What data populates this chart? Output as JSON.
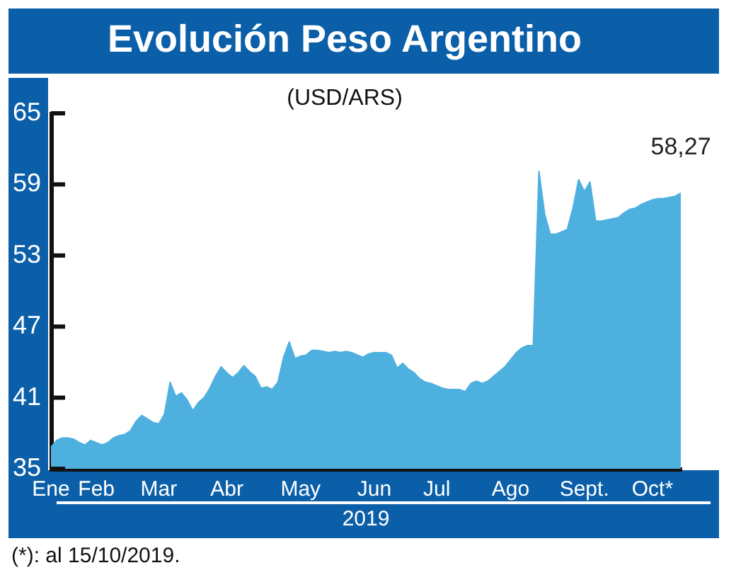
{
  "chart_data": {
    "type": "area",
    "title": "Evolución Peso Argentino",
    "subtitle": "(USD/ARS)",
    "xlabel": "2019",
    "categories": [
      "Ene",
      null,
      null,
      null,
      null,
      null,
      null,
      null,
      "Feb",
      null,
      null,
      null,
      null,
      null,
      null,
      null,
      null,
      null,
      null,
      "Mar",
      null,
      null,
      null,
      null,
      null,
      null,
      null,
      null,
      null,
      null,
      null,
      "Abr",
      null,
      null,
      null,
      null,
      null,
      null,
      null,
      null,
      null,
      null,
      null,
      null,
      "May",
      null,
      null,
      null,
      null,
      null,
      null,
      null,
      null,
      null,
      null,
      null,
      null,
      "Jun",
      null,
      null,
      null,
      null,
      null,
      null,
      null,
      null,
      null,
      null,
      "Jul",
      null,
      null,
      null,
      null,
      null,
      null,
      null,
      null,
      null,
      null,
      null,
      null,
      "Ago",
      null,
      null,
      null,
      null,
      null,
      null,
      null,
      null,
      null,
      null,
      null,
      null,
      "Sept.",
      null,
      null,
      null,
      null,
      null,
      null,
      null,
      null,
      null,
      null,
      null,
      "Oct*",
      null,
      null,
      null,
      null,
      null
    ],
    "values": [
      36.8,
      37.4,
      37.6,
      37.6,
      37.5,
      37.2,
      37.0,
      37.4,
      37.2,
      37.0,
      37.2,
      37.6,
      37.8,
      37.9,
      38.2,
      39.0,
      39.5,
      39.2,
      38.9,
      38.8,
      39.6,
      42.3,
      41.1,
      41.4,
      40.8,
      39.9,
      40.6,
      41.0,
      41.8,
      42.8,
      43.6,
      43.1,
      42.7,
      43.1,
      43.7,
      43.2,
      42.8,
      41.8,
      41.9,
      41.7,
      42.3,
      44.4,
      45.7,
      44.3,
      44.5,
      44.6,
      45.0,
      45.0,
      44.9,
      44.8,
      44.9,
      44.8,
      44.9,
      44.8,
      44.6,
      44.4,
      44.7,
      44.8,
      44.8,
      44.8,
      44.6,
      43.5,
      43.9,
      43.4,
      43.1,
      42.6,
      42.3,
      42.2,
      42.0,
      41.8,
      41.7,
      41.7,
      41.7,
      41.5,
      42.2,
      42.4,
      42.2,
      42.4,
      42.8,
      43.2,
      43.6,
      44.2,
      44.8,
      45.2,
      45.4,
      45.4,
      60.1,
      56.5,
      54.8,
      54.8,
      55.0,
      55.2,
      57.0,
      59.4,
      58.4,
      59.2,
      55.9,
      55.9,
      56.0,
      56.1,
      56.2,
      56.6,
      56.9,
      57.0,
      57.3,
      57.5,
      57.7,
      57.8,
      57.8,
      57.9,
      58.0,
      58.27
    ],
    "value_labels": [
      null,
      null,
      null,
      null,
      null,
      null,
      null,
      null,
      null,
      null,
      null,
      null,
      null,
      null,
      null,
      null,
      null,
      null,
      null,
      null,
      null,
      null,
      null,
      null,
      null,
      null,
      null,
      null,
      null,
      null,
      null,
      null,
      null,
      null,
      null,
      null,
      null,
      null,
      null,
      null,
      null,
      null,
      null,
      null,
      null,
      null,
      null,
      null,
      null,
      null,
      null,
      null,
      null,
      null,
      null,
      null,
      null,
      null,
      null,
      null,
      null,
      null,
      null,
      null,
      null,
      null,
      null,
      null,
      null,
      null,
      null,
      null,
      null,
      null,
      null,
      null,
      null,
      null,
      null,
      null,
      null,
      null,
      null,
      null,
      null,
      null,
      null,
      null,
      null,
      null,
      null,
      null,
      null,
      null,
      null,
      null,
      null,
      null,
      null,
      null,
      null,
      null,
      null,
      null,
      null,
      null,
      null,
      null,
      null,
      null,
      null,
      "58,27"
    ],
    "color": "#4eb0df",
    "ylim": [
      35,
      65
    ],
    "yticks": [
      35,
      41,
      47,
      53,
      59,
      65
    ],
    "grid": false,
    "legend": false,
    "annotations": [
      "(*): al 15/10/2019."
    ]
  }
}
